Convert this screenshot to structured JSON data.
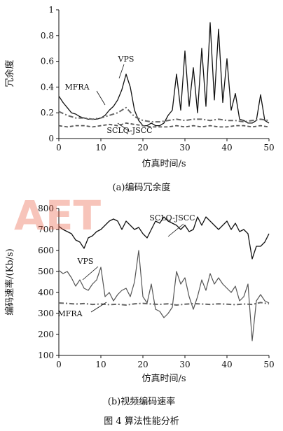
{
  "figure_caption": "图 4   算法性能分析",
  "watermark": {
    "text": "AET",
    "color": "#e8553a"
  },
  "chart_data": [
    {
      "type": "line",
      "caption": "(a)编码冗余度",
      "xlabel": "仿真时间/s",
      "ylabel": "冗余度",
      "xlim": [
        0,
        50
      ],
      "ylim": [
        0,
        1
      ],
      "xticks": [
        "0",
        "10",
        "20",
        "30",
        "40",
        "50"
      ],
      "yticks": [
        "0",
        "0.2",
        "0.4",
        "0.6",
        "0.8",
        "1"
      ],
      "grid": false,
      "annotations": [
        "VPS",
        "MFRA",
        "SCLQ-JSCC"
      ],
      "series": [
        {
          "name": "VPS",
          "style": "solid-black",
          "x": [
            0,
            1,
            2,
            3,
            4,
            5,
            6,
            7,
            8,
            9,
            10,
            11,
            12,
            13,
            14,
            15,
            16,
            17,
            18,
            19,
            20,
            21,
            22,
            23,
            24,
            25,
            26,
            27,
            28,
            29,
            30,
            31,
            32,
            33,
            34,
            35,
            36,
            37,
            38,
            39,
            40,
            41,
            42,
            43,
            44,
            45,
            46,
            47,
            48,
            49,
            50
          ],
          "y": [
            0.33,
            0.28,
            0.24,
            0.2,
            0.19,
            0.17,
            0.16,
            0.15,
            0.15,
            0.15,
            0.16,
            0.18,
            0.22,
            0.25,
            0.3,
            0.38,
            0.5,
            0.4,
            0.22,
            0.14,
            0.1,
            0.1,
            0.12,
            0.1,
            0.1,
            0.12,
            0.18,
            0.22,
            0.5,
            0.22,
            0.68,
            0.25,
            0.55,
            0.2,
            0.7,
            0.25,
            0.9,
            0.3,
            0.85,
            0.28,
            0.62,
            0.22,
            0.35,
            0.15,
            0.14,
            0.12,
            0.12,
            0.14,
            0.34,
            0.14,
            0.12
          ]
        },
        {
          "name": "MFRA",
          "style": "dash-dot-gray",
          "x": [
            0,
            2,
            4,
            6,
            8,
            10,
            12,
            14,
            16,
            18,
            20,
            22,
            24,
            26,
            28,
            30,
            32,
            34,
            36,
            38,
            40,
            42,
            44,
            46,
            48,
            50
          ],
          "y": [
            0.21,
            0.18,
            0.16,
            0.16,
            0.15,
            0.16,
            0.18,
            0.2,
            0.24,
            0.17,
            0.14,
            0.13,
            0.13,
            0.14,
            0.15,
            0.14,
            0.15,
            0.15,
            0.14,
            0.15,
            0.14,
            0.14,
            0.13,
            0.14,
            0.15,
            0.14
          ]
        },
        {
          "name": "SCLQ-JSCC",
          "style": "dashed-gray",
          "x": [
            0,
            2,
            4,
            6,
            8,
            10,
            12,
            14,
            16,
            18,
            20,
            22,
            24,
            26,
            28,
            30,
            32,
            34,
            36,
            38,
            40,
            42,
            44,
            46,
            48,
            50
          ],
          "y": [
            0.1,
            0.09,
            0.1,
            0.1,
            0.09,
            0.1,
            0.11,
            0.1,
            0.12,
            0.11,
            0.1,
            0.09,
            0.09,
            0.09,
            0.1,
            0.09,
            0.1,
            0.09,
            0.1,
            0.09,
            0.09,
            0.1,
            0.1,
            0.09,
            0.1,
            0.09
          ]
        }
      ]
    },
    {
      "type": "line",
      "caption": "(b)视频编码速率",
      "xlabel": "仿真时间/s",
      "ylabel": "编码速率/(Kb/s)",
      "xlim": [
        0,
        50
      ],
      "ylim": [
        100,
        800
      ],
      "xticks": [
        "0",
        "10",
        "20",
        "30",
        "40",
        "50"
      ],
      "yticks": [
        "100",
        "200",
        "300",
        "400",
        "500",
        "600",
        "700",
        "800"
      ],
      "grid": false,
      "annotations": [
        "SCLQ-JSCC",
        "VPS",
        "MFRA"
      ],
      "series": [
        {
          "name": "SCLQ-JSCC",
          "style": "solid-black",
          "x": [
            0,
            1,
            2,
            3,
            4,
            5,
            6,
            7,
            8,
            9,
            10,
            11,
            12,
            13,
            14,
            15,
            16,
            17,
            18,
            19,
            20,
            21,
            22,
            23,
            24,
            25,
            26,
            27,
            28,
            29,
            30,
            31,
            32,
            33,
            34,
            35,
            36,
            37,
            38,
            39,
            40,
            41,
            42,
            43,
            44,
            45,
            46,
            47,
            48,
            49,
            50
          ],
          "y": [
            715,
            700,
            690,
            680,
            650,
            640,
            610,
            660,
            670,
            690,
            700,
            720,
            740,
            750,
            740,
            700,
            740,
            720,
            700,
            710,
            680,
            660,
            700,
            740,
            730,
            760,
            740,
            730,
            720,
            700,
            720,
            690,
            700,
            760,
            720,
            760,
            740,
            720,
            700,
            720,
            740,
            700,
            730,
            690,
            700,
            680,
            560,
            620,
            620,
            640,
            680
          ]
        },
        {
          "name": "VPS",
          "style": "solid-gray",
          "x": [
            0,
            1,
            2,
            3,
            4,
            5,
            6,
            7,
            8,
            9,
            10,
            11,
            12,
            13,
            14,
            15,
            16,
            17,
            18,
            19,
            20,
            21,
            22,
            23,
            24,
            25,
            26,
            27,
            28,
            29,
            30,
            31,
            32,
            33,
            34,
            35,
            36,
            37,
            38,
            39,
            40,
            41,
            42,
            43,
            44,
            45,
            46,
            47,
            48,
            49,
            50
          ],
          "y": [
            505,
            490,
            500,
            470,
            430,
            460,
            420,
            410,
            440,
            460,
            520,
            380,
            400,
            360,
            390,
            410,
            420,
            380,
            450,
            600,
            380,
            350,
            440,
            320,
            310,
            280,
            300,
            330,
            500,
            440,
            470,
            380,
            320,
            380,
            460,
            410,
            490,
            440,
            470,
            440,
            420,
            400,
            430,
            360,
            380,
            440,
            170,
            360,
            390,
            360,
            350
          ]
        },
        {
          "name": "MFRA",
          "style": "dash-dot-gray",
          "x": [
            0,
            2,
            4,
            6,
            8,
            10,
            12,
            14,
            16,
            18,
            20,
            22,
            24,
            26,
            28,
            30,
            32,
            34,
            36,
            38,
            40,
            42,
            44,
            46,
            48,
            50
          ],
          "y": [
            350,
            348,
            345,
            347,
            343,
            345,
            342,
            344,
            340,
            346,
            348,
            345,
            343,
            346,
            340,
            344,
            347,
            345,
            343,
            346,
            344,
            342,
            345,
            343,
            352,
            346
          ]
        }
      ]
    }
  ]
}
